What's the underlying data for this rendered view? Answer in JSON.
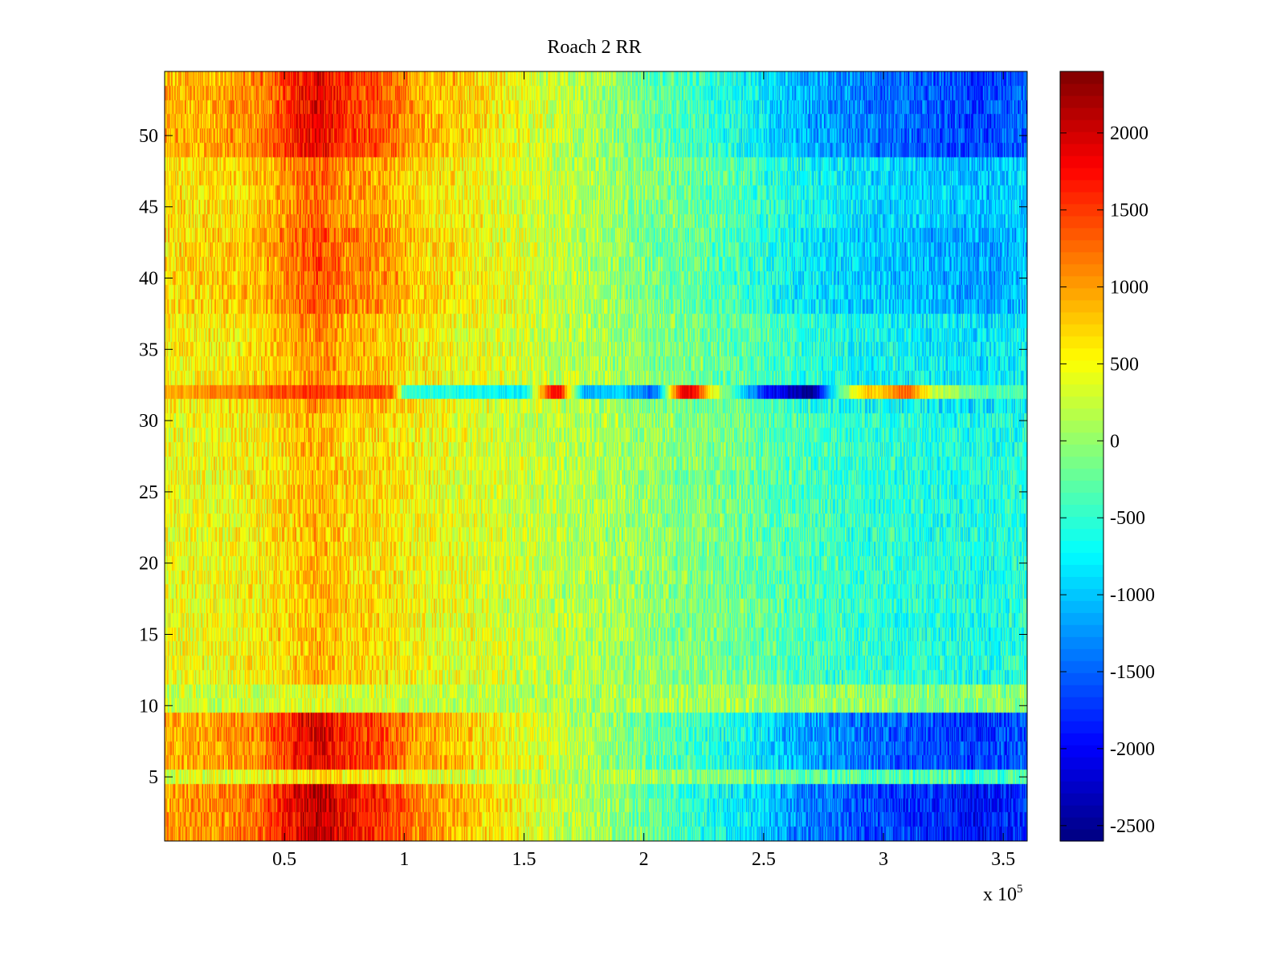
{
  "chart_data": {
    "type": "heatmap",
    "title": "Roach 2 RR",
    "xlabel": "",
    "ylabel": "",
    "x_exponent_label": "x 10",
    "x_exponent_power": "5",
    "xlim": [
      0,
      3.6
    ],
    "ylim": [
      0.5,
      54.5
    ],
    "x_ticks": [
      {
        "value": 0.5,
        "label": "0.5"
      },
      {
        "value": 1,
        "label": "1"
      },
      {
        "value": 1.5,
        "label": "1.5"
      },
      {
        "value": 2,
        "label": "2"
      },
      {
        "value": 2.5,
        "label": "2.5"
      },
      {
        "value": 3,
        "label": "3"
      },
      {
        "value": 3.5,
        "label": "3.5"
      }
    ],
    "y_ticks": [
      {
        "value": 5,
        "label": "5"
      },
      {
        "value": 10,
        "label": "10"
      },
      {
        "value": 15,
        "label": "15"
      },
      {
        "value": 20,
        "label": "20"
      },
      {
        "value": 25,
        "label": "25"
      },
      {
        "value": 30,
        "label": "30"
      },
      {
        "value": 35,
        "label": "35"
      },
      {
        "value": 40,
        "label": "40"
      },
      {
        "value": 45,
        "label": "45"
      },
      {
        "value": 50,
        "label": "50"
      }
    ],
    "colormap": "jet",
    "clim": [
      -2600,
      2400
    ],
    "colorbar_ticks": [
      {
        "value": 2000,
        "label": "2000"
      },
      {
        "value": 1500,
        "label": "1500"
      },
      {
        "value": 1000,
        "label": "1000"
      },
      {
        "value": 500,
        "label": "500"
      },
      {
        "value": 0,
        "label": "0"
      },
      {
        "value": -500,
        "label": "-500"
      },
      {
        "value": -1000,
        "label": "-1000"
      },
      {
        "value": -1500,
        "label": "-1500"
      },
      {
        "value": -2000,
        "label": "-2000"
      },
      {
        "value": -2500,
        "label": "-2500"
      }
    ],
    "x_profile": {
      "x": [
        0,
        0.2,
        0.4,
        0.55,
        0.65,
        0.75,
        0.9,
        1.05,
        1.3,
        1.55,
        1.8,
        2.1,
        2.4,
        2.65,
        2.9,
        3.2,
        3.4,
        3.6
      ],
      "values": [
        700,
        750,
        900,
        1300,
        1500,
        1200,
        1100,
        800,
        550,
        300,
        100,
        -200,
        -450,
        -800,
        -1000,
        -1150,
        -1250,
        -1100
      ]
    },
    "row_groups": [
      {
        "rows": [
          1,
          4
        ],
        "amplitude": 1.5
      },
      {
        "rows": [
          5,
          5
        ],
        "amplitude": 0.4
      },
      {
        "rows": [
          6,
          9
        ],
        "amplitude": 1.35
      },
      {
        "rows": [
          10,
          11
        ],
        "amplitude": 0.15
      },
      {
        "rows": [
          12,
          30
        ],
        "amplitude": 0.55
      },
      {
        "rows": [
          31,
          31
        ],
        "amplitude": 0.7
      },
      {
        "rows": [
          32,
          32
        ],
        "amplitude": 1.0
      },
      {
        "rows": [
          33,
          37
        ],
        "amplitude": 0.7
      },
      {
        "rows": [
          38,
          43
        ],
        "amplitude": 0.95
      },
      {
        "rows": [
          44,
          48
        ],
        "amplitude": 0.85
      },
      {
        "rows": [
          49,
          54
        ],
        "amplitude": 1.3
      }
    ],
    "row_32_segments": {
      "x": [
        0,
        0.3,
        0.6,
        0.95,
        1.0,
        1.5,
        1.6,
        1.65,
        1.75,
        1.9,
        2.05,
        2.15,
        2.2,
        2.3,
        2.5,
        2.6,
        2.7,
        2.8,
        2.9,
        3.0,
        3.1,
        3.2,
        3.4,
        3.6
      ],
      "values": [
        900,
        1200,
        1500,
        1400,
        -500,
        -800,
        1600,
        1700,
        -1200,
        -900,
        -1500,
        1700,
        1900,
        300,
        -1800,
        -2200,
        -2600,
        -600,
        700,
        900,
        1300,
        300,
        -300,
        -400
      ]
    }
  }
}
